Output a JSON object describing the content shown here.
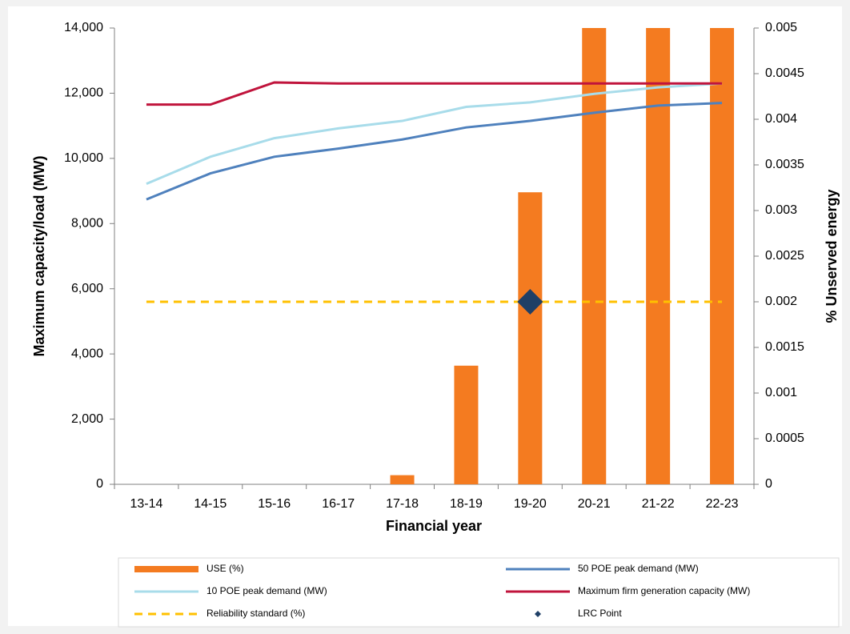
{
  "chart_data": {
    "type": "combo",
    "x_label": "Financial year",
    "y_label": "Maximum capacity/load (MW)",
    "y2_label": "% Unserved energy",
    "categories": [
      "13-14",
      "14-15",
      "15-16",
      "16-17",
      "17-18",
      "18-19",
      "19-20",
      "20-21",
      "21-22",
      "22-23"
    ],
    "ylim": [
      0,
      14000
    ],
    "yticks": [
      0,
      {
        "value": 2000,
        "label": "2,000"
      },
      {
        "value": 4000,
        "label": "4,000"
      },
      {
        "value": 6000,
        "label": "6,000"
      },
      {
        "value": 8000,
        "label": "8,000"
      },
      {
        "value": 10000,
        "label": "10,000"
      },
      {
        "value": 12000,
        "label": "12,000"
      },
      {
        "value": 14000,
        "label": "14,000"
      }
    ],
    "y2lim": [
      0,
      0.005
    ],
    "y2ticks": [
      0,
      0.0005,
      0.001,
      0.0015,
      0.002,
      0.0025,
      0.003,
      0.0035,
      0.004,
      0.0045,
      0.005
    ],
    "series": [
      {
        "name": "USE (%)",
        "type": "bar",
        "axis": "y2",
        "color": "#f47b20",
        "values": [
          0,
          0,
          0,
          0,
          0.0001,
          0.0013,
          0.0032,
          0.005,
          0.005,
          0.005
        ]
      },
      {
        "name": "50 POE peak demand (MW)",
        "type": "line",
        "color": "#4f81bd",
        "values": [
          8740,
          9540,
          10050,
          10300,
          10580,
          10950,
          11150,
          11400,
          11620,
          11700
        ]
      },
      {
        "name": "10 POE peak demand (MW)",
        "type": "line",
        "color": "#a8dcea",
        "values": [
          9220,
          10050,
          10620,
          10920,
          11150,
          11580,
          11720,
          11980,
          12180,
          12300
        ]
      },
      {
        "name": "Maximum firm generation capacity (MW)",
        "type": "line",
        "color": "#c0143c",
        "values": [
          11650,
          11650,
          12330,
          12300,
          12300,
          12300,
          12300,
          12300,
          12300,
          12300
        ]
      },
      {
        "name": "Reliability standard (%)",
        "type": "line",
        "axis": "y2",
        "dash": true,
        "color": "#ffc000",
        "values": [
          0.002,
          0.002,
          0.002,
          0.002,
          0.002,
          0.002,
          0.002,
          0.002,
          0.002,
          0.002
        ]
      },
      {
        "name": "LRC Point",
        "type": "scatter",
        "axis": "y2",
        "marker": "diamond",
        "color": "#1f3f66",
        "values": [
          null,
          null,
          null,
          null,
          null,
          null,
          0.002,
          null,
          null,
          null
        ]
      }
    ]
  }
}
